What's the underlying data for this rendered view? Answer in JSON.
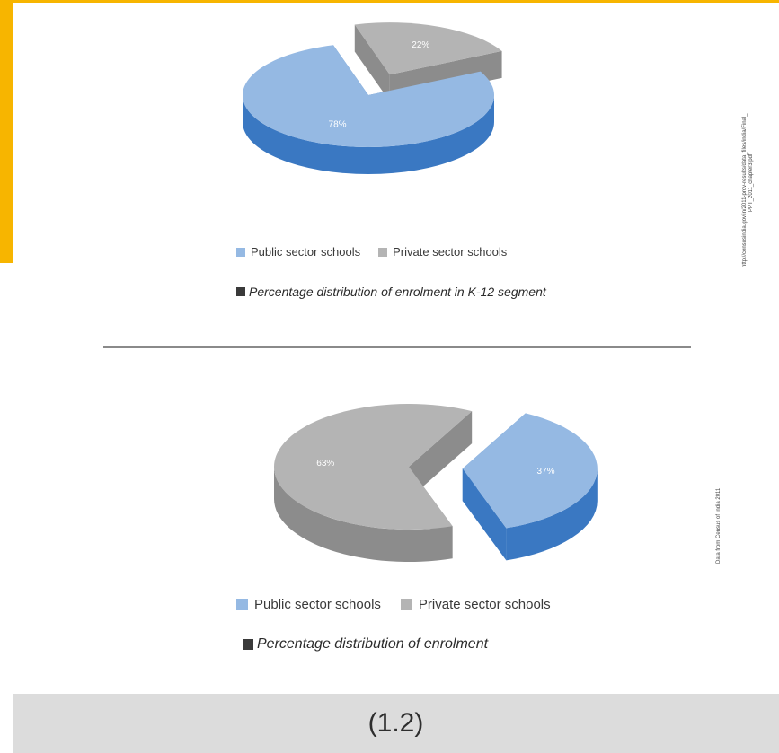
{
  "chart_data": [
    {
      "type": "pie",
      "title": "",
      "labels": [
        "Public sector schools",
        "Private sector schools"
      ],
      "values": [
        78,
        22
      ],
      "data_labels": [
        "78%",
        "22%"
      ],
      "colors": [
        "#95b9e3",
        "#b4b4b4"
      ],
      "exploded": true,
      "style": "3d"
    },
    {
      "type": "pie",
      "title": "",
      "labels": [
        "Public sector schools",
        "Private sector schools"
      ],
      "values": [
        37,
        63
      ],
      "data_labels": [
        "37%",
        "63%"
      ],
      "colors": [
        "#95b9e3",
        "#b4b4b4"
      ],
      "exploded": true,
      "style": "3d"
    }
  ],
  "chart1": {
    "legend": [
      "Public sector schools",
      "Private sector schools"
    ],
    "caption": "Percentage distribution of enrolment in K-12 segment",
    "source_line1": "http://censusindia.gov.in/2011-prov-results/data_files/india/Final_",
    "source_line2": "PPT_2011_chapter3.pdf"
  },
  "chart2": {
    "legend": [
      "Public sector schools",
      "Private sector schools"
    ],
    "caption": "Percentage distribution of enrolment",
    "source": "Data from Census of India 2011"
  },
  "footer": {
    "label": "(1.2)"
  },
  "colors": {
    "accent": "#f7b500",
    "public_top": "#95b9e3",
    "public_side": "#3a78c2",
    "private_top": "#b4b4b4",
    "private_side": "#8c8c8c"
  }
}
